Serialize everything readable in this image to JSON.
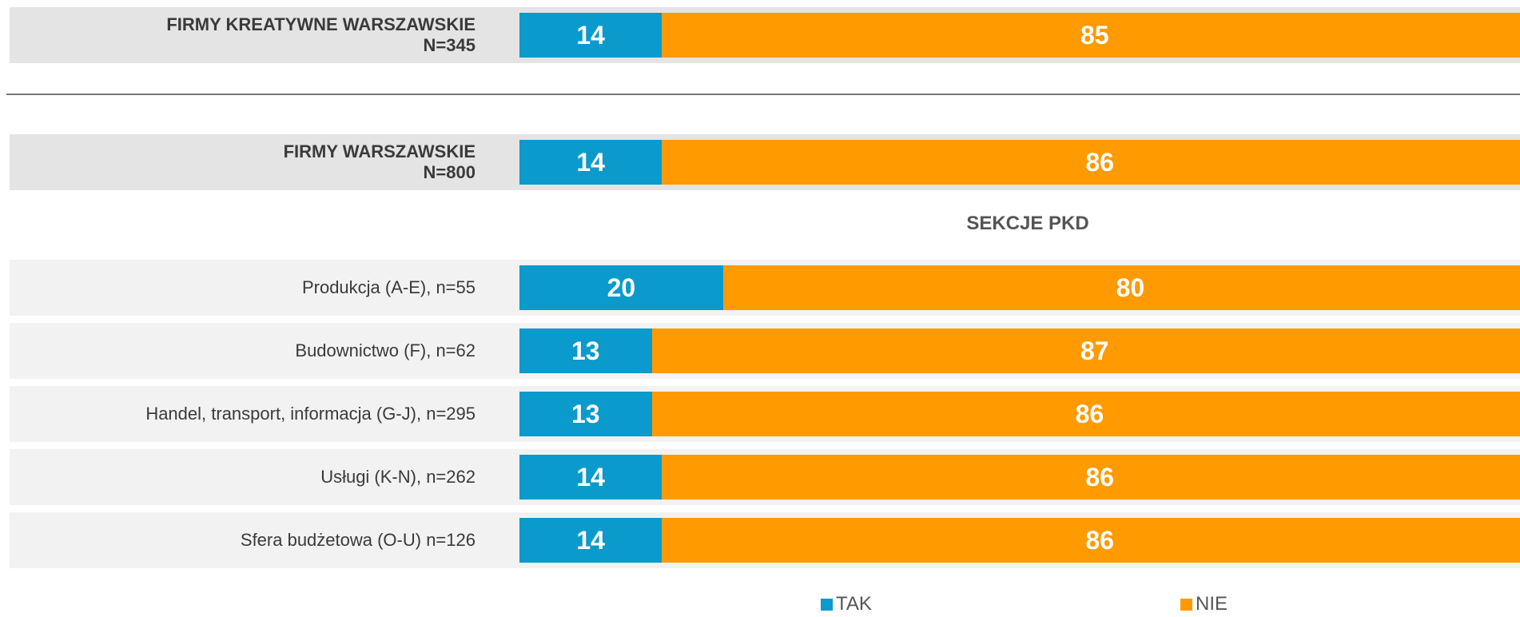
{
  "chart_data": {
    "type": "stacked_barh",
    "categories": [
      "FIRMY KREATYWNE WARSZAWSKIE\nN=345",
      "FIRMY WARSZAWSKIE\nN=800",
      "Produkcja (A-E), n=55",
      "Budownictwo (F), n=62",
      "Handel, transport, informacja (G-J), n=295",
      "Usługi (K-N), n=262",
      "Sfera budżetowa (O-U) n=126"
    ],
    "series": [
      {
        "name": "TAK",
        "color": "#0a9acb",
        "values": [
          14,
          14,
          20,
          13,
          13,
          14,
          14
        ]
      },
      {
        "name": "NIE",
        "color": "#ff9a00",
        "values": [
          85,
          86,
          80,
          87,
          86,
          86,
          86
        ]
      }
    ],
    "annotation": "SEKCJE PKD",
    "xlim": [
      0,
      100
    ],
    "legend": "bottom"
  }
}
